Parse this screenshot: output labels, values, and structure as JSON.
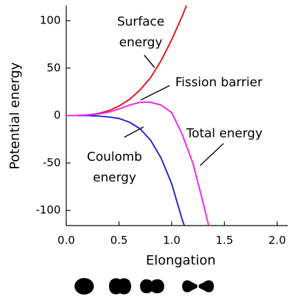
{
  "chart_data": {
    "type": "line",
    "xlabel": "Elongation",
    "ylabel": "Potential energy",
    "xlim": [
      0,
      2.1
    ],
    "ylim": [
      -116,
      116
    ],
    "xticks": [
      {
        "value": 0,
        "label": "0.0"
      },
      0.5,
      {
        "value": 1,
        "label": "1.0"
      },
      1.5,
      {
        "value": 2,
        "label": "2.0"
      }
    ],
    "yticks": [
      -100,
      -50,
      0,
      50,
      100
    ],
    "series": [
      {
        "color": "#e81010",
        "x": [
          0,
          0.1,
          0.2,
          0.3,
          0.4,
          0.5,
          0.6,
          0.7,
          0.8,
          0.9,
          1.0,
          1.1,
          1.14
        ],
        "values": [
          0,
          0.1,
          0.6,
          2,
          5,
          10,
          17,
          27,
          40,
          58,
          80,
          105,
          116
        ]
      },
      {
        "color": "#2020d0",
        "x": [
          0,
          0.1,
          0.2,
          0.3,
          0.4,
          0.5,
          0.6,
          0.7,
          0.8,
          0.9,
          1.0,
          1.1,
          1.12
        ],
        "values": [
          0,
          0,
          0,
          -0.5,
          -1.5,
          -3,
          -7,
          -14,
          -26,
          -45,
          -72,
          -110,
          -116
        ]
      },
      {
        "color": "#f020f0",
        "x": [
          0,
          0.1,
          0.2,
          0.3,
          0.4,
          0.5,
          0.6,
          0.7,
          0.8,
          0.9,
          1.0,
          1.1,
          1.2,
          1.3,
          1.35
        ],
        "values": [
          0,
          0.1,
          0.6,
          1.5,
          3.5,
          7,
          11,
          14,
          14,
          11,
          3,
          -20,
          -50,
          -93,
          -116
        ]
      }
    ],
    "annotations": [
      {
        "lines": [
          "Surface",
          "energy"
        ]
      },
      {
        "lines": [
          "Fission barrier"
        ]
      },
      {
        "lines": [
          "Total energy"
        ]
      },
      {
        "lines": [
          "Coulomb",
          "energy"
        ]
      }
    ]
  }
}
